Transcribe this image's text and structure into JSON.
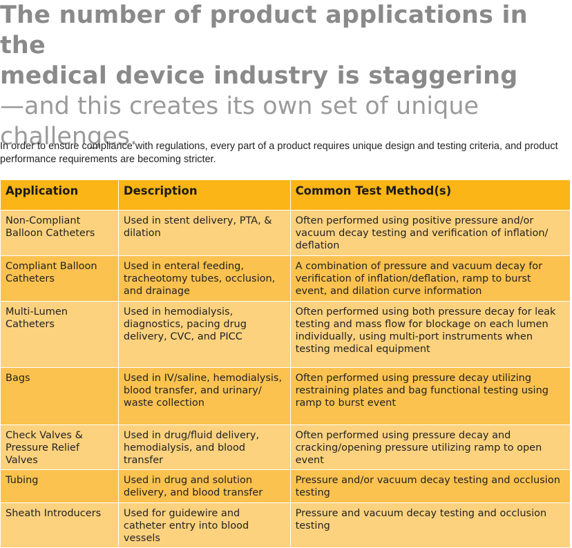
{
  "headline": {
    "bold_line1": "The number of product applications in the",
    "bold_line2": "medical device industry is staggering",
    "light_line1": "—and this creates its own set of unique",
    "light_line2": "challenges."
  },
  "intro": "In order to ensure compliance with regulations, every part of a product requires unique design and testing criteria, and product performance requirements are becoming stricter.",
  "table": {
    "headers": [
      "Application",
      "Description",
      "Common Test Method(s)"
    ],
    "rows": [
      [
        "Non-Compliant Balloon Catheters",
        "Used in stent delivery, PTA, & dilation",
        "Often performed using positive pressure and/or vacuum decay testing and verification of inflation/ deflation"
      ],
      [
        "Compliant Balloon Catheters",
        "Used in enteral feeding, tracheotomy tubes, occlusion, and drainage",
        "A combination of pressure and vacuum decay for verification of inflation/deflation, ramp to burst event, and dilation curve information"
      ],
      [
        "Multi-Lumen Catheters",
        "Used in hemodialysis, diagnostics, pacing drug delivery, CVC, and PICC",
        "Often performed using both pressure decay for leak testing and mass flow for blockage on each lumen individually, using multi-port instruments when testing medical equipment"
      ],
      [
        "Bags",
        "Used in IV/saline, hemodialysis, blood transfer, and urinary/ waste collection",
        "Often performed using pressure decay utilizing restraining plates and bag functional testing using ramp to burst event"
      ],
      [
        "Check Valves & Pressure Relief Valves",
        "Used in drug/fluid delivery, hemodialysis, and blood transfer",
        "Often performed using pressure decay and cracking/opening pressure utilizing ramp to open event"
      ],
      [
        "Tubing",
        "Used in drug and solution delivery, and blood transfer",
        "Pressure and/or vacuum decay testing and occlusion testing"
      ],
      [
        "Sheath Introducers",
        "Used for guidewire and catheter entry into blood vessels",
        "Pressure and vacuum decay testing and occlusion testing"
      ]
    ]
  },
  "colors": {
    "header_bg": "#fbb516",
    "row_light": "#fcd27e",
    "row_dark": "#fbc24f",
    "headline_gray": "#8a8a8a"
  }
}
